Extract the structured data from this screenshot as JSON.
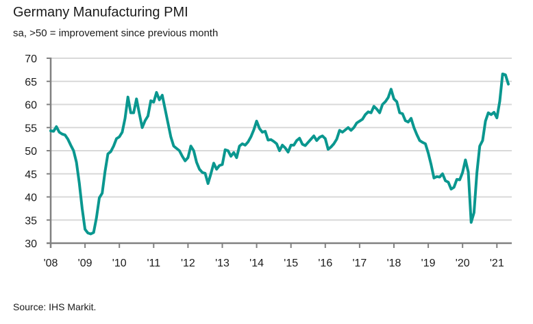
{
  "header": {
    "title": "Germany Manufacturing PMI",
    "subtitle": "sa, >50 = improvement since previous month"
  },
  "footer": {
    "source": "Source: IHS Markit."
  },
  "colors": {
    "line": "#0a978f",
    "grid": "#d9d9d9",
    "axis": "#808080"
  },
  "chart_data": {
    "type": "line",
    "title": "Germany Manufacturing PMI",
    "subtitle": "sa, >50 = improvement since previous month",
    "xlabel": "",
    "ylabel": "",
    "ylim": [
      30,
      70
    ],
    "yticks": [
      30,
      35,
      40,
      45,
      50,
      55,
      60,
      65,
      70
    ],
    "xticks": [
      "'08",
      "'09",
      "'10",
      "'11",
      "'12",
      "'13",
      "'14",
      "'15",
      "'16",
      "'17",
      "'18",
      "'19",
      "'20",
      "'21"
    ],
    "x_start": "2008-01",
    "x_end": "2021-05",
    "frequency": "monthly",
    "grid": true,
    "legend": "none",
    "series": [
      {
        "name": "Germany Manufacturing PMI",
        "values": [
          54.3,
          54.2,
          55.2,
          54.0,
          53.6,
          53.4,
          52.5,
          51.2,
          50.0,
          47.5,
          43.0,
          37.5,
          33.0,
          32.2,
          32.0,
          32.3,
          35.5,
          39.8,
          40.8,
          45.5,
          49.3,
          49.8,
          51.0,
          52.6,
          53.0,
          54.0,
          57.0,
          61.6,
          58.2,
          58.2,
          61.2,
          58.0,
          55.0,
          56.5,
          57.5,
          60.8,
          60.5,
          62.6,
          61.0,
          62.0,
          59.0,
          56.0,
          53.0,
          51.0,
          50.5,
          50.0,
          48.8,
          47.8,
          48.5,
          51.0,
          50.0,
          47.5,
          46.0,
          45.3,
          45.1,
          42.9,
          45.0,
          47.3,
          46.0,
          46.8,
          47.0,
          50.2,
          50.0,
          48.8,
          49.6,
          48.5,
          51.0,
          51.5,
          51.2,
          51.9,
          53.0,
          54.5,
          56.4,
          54.8,
          54.0,
          54.2,
          52.3,
          52.4,
          52.0,
          51.5,
          50.0,
          51.2,
          50.6,
          49.7,
          51.2,
          51.2,
          52.2,
          52.7,
          51.4,
          51.1,
          51.8,
          52.5,
          53.2,
          52.2,
          52.9,
          53.2,
          52.6,
          50.3,
          50.8,
          51.5,
          52.5,
          54.4,
          54.0,
          54.5,
          55.0,
          54.4,
          55.0,
          56.0,
          56.4,
          56.8,
          57.8,
          58.4,
          58.2,
          59.6,
          59.0,
          58.2,
          60.0,
          60.6,
          61.5,
          63.3,
          61.2,
          60.6,
          58.2,
          58.0,
          56.5,
          56.2,
          57.0,
          55.0,
          53.5,
          52.2,
          51.8,
          51.5,
          49.5,
          47.0,
          44.1,
          44.4,
          44.3,
          45.0,
          43.5,
          43.2,
          41.7,
          42.1,
          43.8,
          43.7,
          45.3,
          48.0,
          45.4,
          34.5,
          36.6,
          45.2,
          51.0,
          52.2,
          56.4,
          58.2,
          57.8,
          58.3,
          57.1,
          60.7,
          66.6,
          66.4,
          64.4
        ]
      }
    ]
  }
}
